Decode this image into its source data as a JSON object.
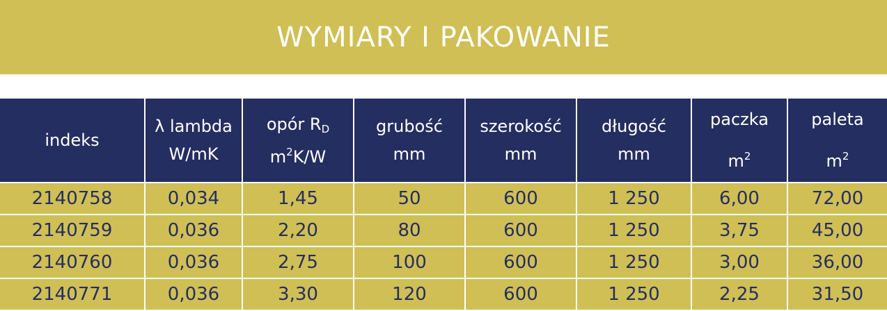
{
  "title": "WYMIARY I PAKOWANIE",
  "headers": [
    {
      "line1": "indeks",
      "line2": ""
    },
    {
      "line1": "λ lambda",
      "line2": "W/mK"
    },
    {
      "line1": "opór R",
      "line1_sub": "D",
      "line2": "m",
      "line2_sup": "2",
      "line2_rest": "K/W"
    },
    {
      "line1": "grubość",
      "line2": "mm"
    },
    {
      "line1": "szerokość",
      "line2": "mm"
    },
    {
      "line1": "długość",
      "line2": "mm"
    },
    {
      "line1": "paczka",
      "line2": "m",
      "line2_sup": "2"
    },
    {
      "line1": "paleta",
      "line2": "m",
      "line2_sup": "2"
    }
  ],
  "rows": [
    [
      "2140758",
      "0,034",
      "1,45",
      "50",
      "600",
      "1 250",
      "6,00",
      "72,00"
    ],
    [
      "2140759",
      "0,036",
      "2,20",
      "80",
      "600",
      "1 250",
      "3,75",
      "45,00"
    ],
    [
      "2140760",
      "0,036",
      "2,75",
      "100",
      "600",
      "1 250",
      "3,00",
      "36,00"
    ],
    [
      "2140771",
      "0,036",
      "3,30",
      "120",
      "600",
      "1 250",
      "2,25",
      "31,50"
    ]
  ],
  "colors": {
    "gold": "#cfbf55",
    "navy": "#252e60"
  }
}
